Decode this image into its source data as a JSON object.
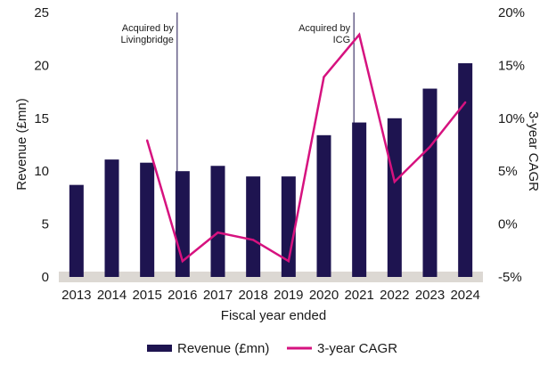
{
  "chart_data": {
    "type": "bar",
    "categories": [
      "2013",
      "2014",
      "2015",
      "2016",
      "2017",
      "2018",
      "2019",
      "2020",
      "2021",
      "2022",
      "2023",
      "2024"
    ],
    "series": [
      {
        "name": "Revenue (£mn)",
        "type": "bar",
        "axis": "left",
        "color": "#1e1450",
        "values": [
          8.7,
          11.1,
          10.8,
          10.0,
          10.5,
          9.5,
          9.5,
          13.4,
          14.6,
          15.0,
          17.8,
          20.2
        ]
      },
      {
        "name": "3-year CAGR",
        "type": "line",
        "axis": "right",
        "color": "#d6127f",
        "values": [
          null,
          null,
          7.9,
          -3.5,
          -0.8,
          -1.5,
          -3.5,
          13.9,
          17.9,
          4.0,
          7.3,
          11.5
        ]
      }
    ],
    "xlabel": "Fiscal year ended",
    "ylabel": "Revenue (£mn)",
    "ylabel_right": "3-year CAGR",
    "ylim": [
      0,
      25
    ],
    "ylim_right": [
      -5,
      20
    ],
    "yticks": [
      "0",
      "5",
      "10",
      "15",
      "20",
      "25"
    ],
    "yticks_right": [
      "-5%",
      "0%",
      "5%",
      "10%",
      "15%",
      "20%"
    ],
    "annotations": [
      {
        "year": "2016",
        "line1": "Acquired by",
        "line2": "Livingbridge"
      },
      {
        "year": "2021",
        "line1": "Acquired by",
        "line2": "ICG"
      }
    ],
    "legend": {
      "position": "bottom",
      "items": [
        "Revenue (£mn)",
        "3-year CAGR"
      ]
    }
  }
}
